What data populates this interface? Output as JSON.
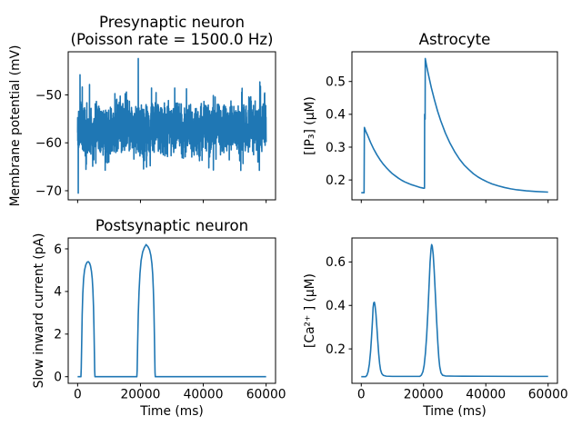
{
  "figure": {
    "background": "#ffffff",
    "line_color": "#1f77b4",
    "axes_color": "#000000",
    "text_color": "#000000"
  },
  "chart_data": [
    {
      "id": "presynaptic",
      "type": "line",
      "title_lines": [
        "Presynaptic neuron",
        "(Poisson rate = 1500.0 Hz)"
      ],
      "ylabel": "Membrane potential (mV)",
      "xlabel": "",
      "xlim": [
        -3000,
        63000
      ],
      "ylim": [
        -71.9,
        -41.0
      ],
      "xticks": [
        0,
        20000,
        40000,
        60000
      ],
      "show_xtick_labels": false,
      "yticks": [
        -70,
        -60,
        -50
      ],
      "signal": {
        "kind": "noisy-membrane-potential",
        "baseline_mV": -57,
        "dense_band_mV": [
          -63,
          -51
        ],
        "extreme_band_mV": [
          -67,
          -46.6
        ],
        "t_range_ms": [
          0,
          60000
        ],
        "n_points": 2600,
        "seed": 20,
        "spikes": [
          {
            "t_ms": 200,
            "v_mV": -70.5
          },
          {
            "t_ms": 760,
            "v_mV": -45.8
          },
          {
            "t_ms": 19300,
            "v_mV": -42.4
          },
          {
            "t_ms": 58000,
            "v_mV": -47.3
          }
        ]
      }
    },
    {
      "id": "astrocyte",
      "type": "line",
      "title_lines": [
        "Astrocyte"
      ],
      "ylabel": "[IP₃] (μM)",
      "xlabel": "",
      "xlim": [
        -3000,
        63000
      ],
      "ylim": [
        0.1395,
        0.5905
      ],
      "xticks": [
        0,
        20000,
        40000,
        60000
      ],
      "show_xtick_labels": false,
      "yticks": [
        0.2,
        0.3,
        0.4,
        0.5
      ],
      "points": [
        [
          0,
          0.161
        ],
        [
          900,
          0.161
        ],
        [
          1000,
          0.36
        ],
        [
          1500,
          0.347
        ],
        [
          2000,
          0.337
        ],
        [
          3000,
          0.314
        ],
        [
          4000,
          0.294
        ],
        [
          5000,
          0.277
        ],
        [
          6000,
          0.262
        ],
        [
          7000,
          0.249
        ],
        [
          8000,
          0.238
        ],
        [
          9000,
          0.228
        ],
        [
          10000,
          0.219
        ],
        [
          11000,
          0.212
        ],
        [
          12000,
          0.205
        ],
        [
          13000,
          0.199
        ],
        [
          14000,
          0.194
        ],
        [
          15000,
          0.19
        ],
        [
          16000,
          0.186
        ],
        [
          17000,
          0.183
        ],
        [
          18000,
          0.18
        ],
        [
          19000,
          0.177
        ],
        [
          20000,
          0.175
        ],
        [
          20300,
          0.175
        ],
        [
          20350,
          0.4
        ],
        [
          20500,
          0.385
        ],
        [
          20550,
          0.57
        ],
        [
          21000,
          0.547
        ],
        [
          21500,
          0.524
        ],
        [
          22500,
          0.481
        ],
        [
          23500,
          0.444
        ],
        [
          24500,
          0.41
        ],
        [
          25500,
          0.381
        ],
        [
          27000,
          0.343
        ],
        [
          28500,
          0.312
        ],
        [
          30000,
          0.286
        ],
        [
          31500,
          0.264
        ],
        [
          33000,
          0.246
        ],
        [
          34500,
          0.232
        ],
        [
          36000,
          0.219
        ],
        [
          37500,
          0.209
        ],
        [
          39000,
          0.201
        ],
        [
          40500,
          0.194
        ],
        [
          42000,
          0.188
        ],
        [
          44000,
          0.182
        ],
        [
          46000,
          0.177
        ],
        [
          48000,
          0.173
        ],
        [
          50000,
          0.17
        ],
        [
          53000,
          0.167
        ],
        [
          56000,
          0.165
        ],
        [
          60000,
          0.163
        ]
      ]
    },
    {
      "id": "postsynaptic",
      "type": "line",
      "title_lines": [
        "Postsynaptic neuron"
      ],
      "ylabel": "Slow inward current (pA)",
      "xlabel": "Time (ms)",
      "xlim": [
        -3000,
        63000
      ],
      "ylim": [
        -0.31,
        6.51
      ],
      "xticks": [
        0,
        20000,
        40000,
        60000
      ],
      "show_xtick_labels": true,
      "yticks": [
        0,
        2,
        4,
        6
      ],
      "points": [
        [
          0,
          0
        ],
        [
          1050,
          0
        ],
        [
          1150,
          0.4
        ],
        [
          1300,
          1.6
        ],
        [
          1450,
          2.9
        ],
        [
          1650,
          3.9
        ],
        [
          1900,
          4.6
        ],
        [
          2200,
          5.0
        ],
        [
          2600,
          5.25
        ],
        [
          3000,
          5.37
        ],
        [
          3400,
          5.4
        ],
        [
          3800,
          5.33
        ],
        [
          4100,
          5.2
        ],
        [
          4400,
          4.95
        ],
        [
          4650,
          4.6
        ],
        [
          4850,
          4.1
        ],
        [
          5050,
          3.3
        ],
        [
          5200,
          2.3
        ],
        [
          5330,
          1.2
        ],
        [
          5430,
          0.3
        ],
        [
          5520,
          0
        ],
        [
          18850,
          0
        ],
        [
          18950,
          0.3
        ],
        [
          19100,
          1.5
        ],
        [
          19300,
          2.9
        ],
        [
          19550,
          4.0
        ],
        [
          19850,
          4.85
        ],
        [
          20200,
          5.45
        ],
        [
          20700,
          5.85
        ],
        [
          21200,
          6.05
        ],
        [
          21800,
          6.2
        ],
        [
          22400,
          6.1
        ],
        [
          22900,
          5.95
        ],
        [
          23300,
          5.7
        ],
        [
          23650,
          5.3
        ],
        [
          23900,
          4.8
        ],
        [
          24100,
          4.1
        ],
        [
          24280,
          3.2
        ],
        [
          24420,
          2.1
        ],
        [
          24540,
          1.0
        ],
        [
          24640,
          0.2
        ],
        [
          24720,
          0
        ],
        [
          60000,
          0
        ]
      ]
    },
    {
      "id": "calcium",
      "type": "line",
      "title_lines": [],
      "ylabel": "[Ca²⁺ ] (μM)",
      "xlabel": "Time (ms)",
      "xlim": [
        -3000,
        63000
      ],
      "ylim": [
        0.0416,
        0.7104
      ],
      "xticks": [
        0,
        20000,
        40000,
        60000
      ],
      "show_xtick_labels": true,
      "yticks": [
        0.2,
        0.4,
        0.6
      ],
      "points": [
        [
          0,
          0.072
        ],
        [
          1400,
          0.072
        ],
        [
          1800,
          0.078
        ],
        [
          2200,
          0.095
        ],
        [
          2600,
          0.13
        ],
        [
          3000,
          0.19
        ],
        [
          3300,
          0.255
        ],
        [
          3600,
          0.33
        ],
        [
          3800,
          0.39
        ],
        [
          4000,
          0.412
        ],
        [
          4200,
          0.415
        ],
        [
          4400,
          0.402
        ],
        [
          4700,
          0.362
        ],
        [
          5000,
          0.302
        ],
        [
          5300,
          0.237
        ],
        [
          5600,
          0.177
        ],
        [
          5900,
          0.132
        ],
        [
          6200,
          0.103
        ],
        [
          6600,
          0.086
        ],
        [
          7100,
          0.078
        ],
        [
          8000,
          0.0745
        ],
        [
          10000,
          0.0735
        ],
        [
          18800,
          0.0735
        ],
        [
          19300,
          0.079
        ],
        [
          19800,
          0.095
        ],
        [
          20200,
          0.125
        ],
        [
          20600,
          0.18
        ],
        [
          21000,
          0.26
        ],
        [
          21400,
          0.37
        ],
        [
          21800,
          0.5
        ],
        [
          22100,
          0.6
        ],
        [
          22400,
          0.66
        ],
        [
          22600,
          0.68
        ],
        [
          22800,
          0.672
        ],
        [
          23100,
          0.635
        ],
        [
          23400,
          0.565
        ],
        [
          23800,
          0.45
        ],
        [
          24200,
          0.33
        ],
        [
          24600,
          0.225
        ],
        [
          24900,
          0.16
        ],
        [
          25200,
          0.118
        ],
        [
          25600,
          0.09
        ],
        [
          26100,
          0.079
        ],
        [
          27000,
          0.0755
        ],
        [
          30000,
          0.0745
        ],
        [
          40000,
          0.074
        ],
        [
          50000,
          0.0735
        ],
        [
          60000,
          0.0735
        ]
      ]
    }
  ]
}
